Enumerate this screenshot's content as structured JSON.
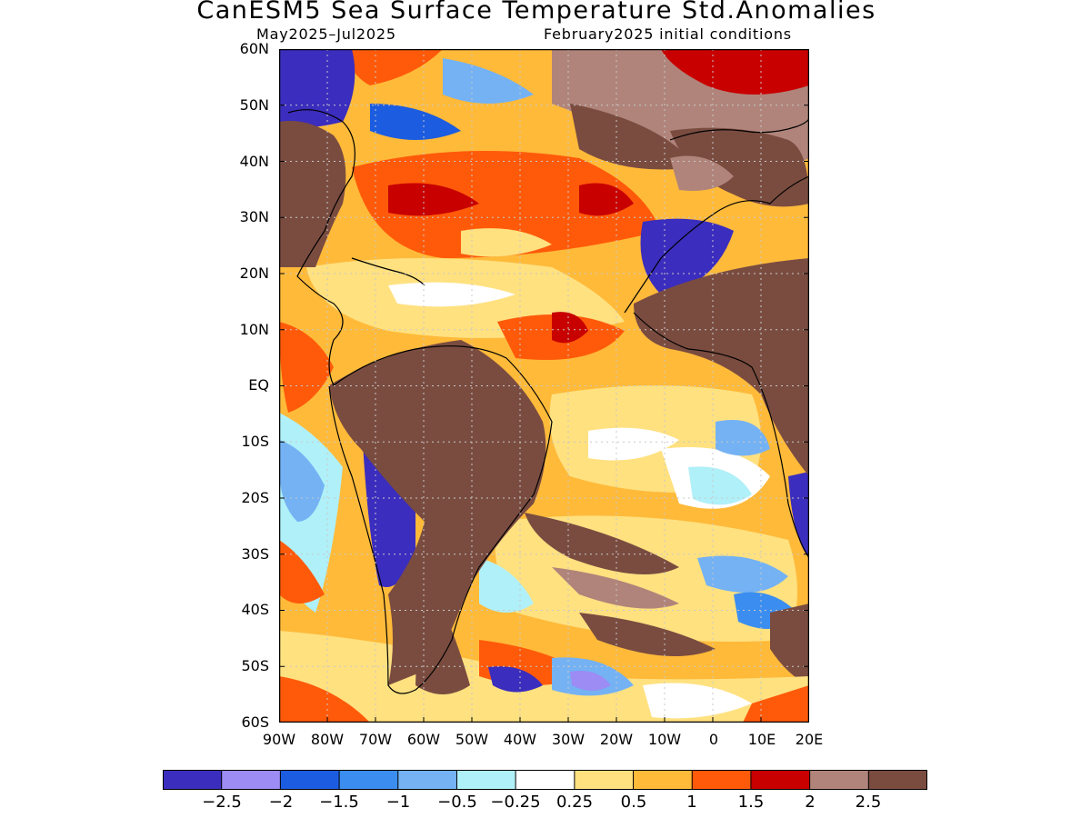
{
  "title": "CanESM5 Sea Surface Temperature Std.Anomalies",
  "subtitle_left": "May2025–Jul2025",
  "subtitle_right": "February2025 initial conditions",
  "map": {
    "region": "Atlantic Ocean",
    "lat_range": [
      "60S",
      "60N"
    ],
    "lon_range": [
      "90W",
      "20E"
    ],
    "gridlines": "dotted"
  },
  "lat_labels": [
    "60N",
    "50N",
    "40N",
    "30N",
    "20N",
    "10N",
    "EQ",
    "10S",
    "20S",
    "30S",
    "40S",
    "50S",
    "60S"
  ],
  "lon_labels": [
    "90W",
    "80W",
    "70W",
    "60W",
    "50W",
    "40W",
    "30W",
    "20W",
    "10W",
    "0",
    "10E",
    "20E"
  ],
  "colorbar": {
    "colors": [
      "#3b2dbd",
      "#9c8cf4",
      "#1c5ce0",
      "#3b8ef0",
      "#74b2f4",
      "#b0f0f8",
      "#ffffff",
      "#ffe180",
      "#ffba3a",
      "#ff5a0a",
      "#c80000",
      "#b0847a",
      "#7a4c40"
    ],
    "labels": [
      "−2.5",
      "−2",
      "−1.5",
      "−1",
      "−0.5",
      "−0.25",
      "0.25",
      "0.5",
      "1",
      "1.5",
      "2",
      "2.5"
    ]
  },
  "colors": {
    "land": "#7a4c40"
  }
}
